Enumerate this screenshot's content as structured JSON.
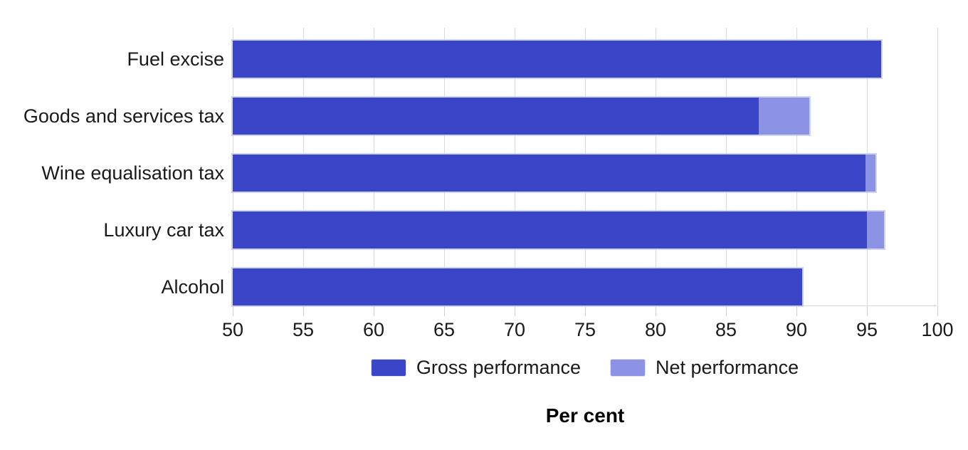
{
  "chart_data": {
    "type": "bar",
    "orientation": "horizontal",
    "categories": [
      "Fuel excise",
      "Goods and services tax",
      "Wine equalisation tax",
      "Luxury car tax",
      "Alcohol"
    ],
    "series": [
      {
        "name": "Gross performance",
        "color": "#3a45c8",
        "values": [
          96.0,
          87.3,
          94.9,
          95.0,
          90.4
        ]
      },
      {
        "name": "Net performance",
        "color": "#8c92e4",
        "values": [
          96.0,
          90.9,
          95.6,
          96.2,
          90.4
        ]
      }
    ],
    "xlabel": "Per cent",
    "xlim": [
      50,
      100
    ],
    "xticks": [
      50,
      55,
      60,
      65,
      70,
      75,
      80,
      85,
      90,
      95,
      100
    ],
    "grid": true,
    "legend_position": "bottom"
  },
  "colors": {
    "background": "#ffffff",
    "gridline": "#dadada",
    "axis_line": "#d9d9d9",
    "tick_mark": "#cfcfcf",
    "text": "#1a1a1a",
    "bar_rim": "#bec4f0"
  }
}
